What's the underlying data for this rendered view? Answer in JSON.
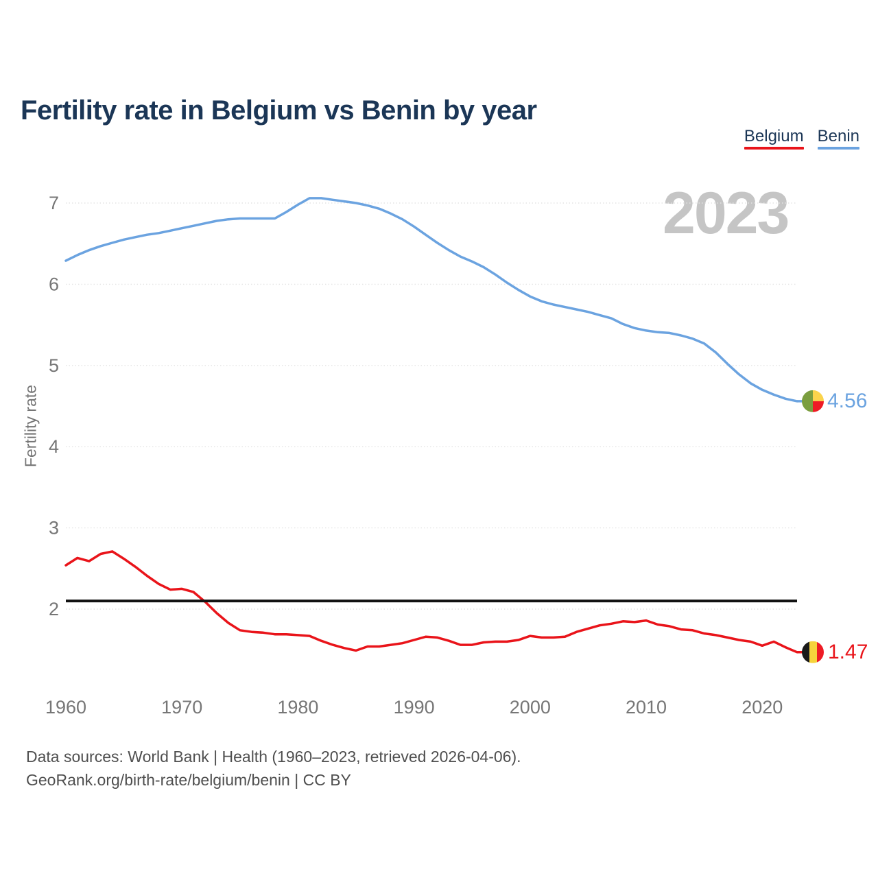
{
  "title": "Fertility rate in Belgium vs Benin by year",
  "watermark": "2023",
  "ylabel": "Fertility rate",
  "legend": [
    {
      "label": "Belgium",
      "color": "#e9141a"
    },
    {
      "label": "Benin",
      "color": "#6ba3e0"
    }
  ],
  "footer": {
    "line1": "Data sources: World Bank | Health (1960–2023, retrieved 2026-04-06).",
    "line2": "GeoRank.org/birth-rate/belgium/benin | CC BY"
  },
  "chart_data": {
    "type": "line",
    "title": "Fertility rate in Belgium vs Benin by year",
    "xlabel": "",
    "ylabel": "Fertility rate",
    "xlim": [
      1960,
      2023
    ],
    "ylim": [
      1.3,
      7.3
    ],
    "grid": "horizontal-dotted",
    "legend_position": "top-right",
    "yticks": [
      2,
      3,
      4,
      5,
      6,
      7
    ],
    "xticks": [
      1960,
      1970,
      1980,
      1990,
      2000,
      2010,
      2020
    ],
    "reference_line": {
      "value": 2.1,
      "color": "#111111",
      "label": ""
    },
    "x": [
      1960,
      1961,
      1962,
      1963,
      1964,
      1965,
      1966,
      1967,
      1968,
      1969,
      1970,
      1971,
      1972,
      1973,
      1974,
      1975,
      1976,
      1977,
      1978,
      1979,
      1980,
      1981,
      1982,
      1983,
      1984,
      1985,
      1986,
      1987,
      1988,
      1989,
      1990,
      1991,
      1992,
      1993,
      1994,
      1995,
      1996,
      1997,
      1998,
      1999,
      2000,
      2001,
      2002,
      2003,
      2004,
      2005,
      2006,
      2007,
      2008,
      2009,
      2010,
      2011,
      2012,
      2013,
      2014,
      2015,
      2016,
      2017,
      2018,
      2019,
      2020,
      2021,
      2022,
      2023
    ],
    "series": [
      {
        "name": "Belgium",
        "color": "#e9141a",
        "end_label": "1.47",
        "end_value": 1.47,
        "flag": {
          "type": "vertical-stripes",
          "colors": [
            "#1a1a1a",
            "#f6d33c",
            "#ee1c25"
          ]
        },
        "values": [
          2.54,
          2.63,
          2.59,
          2.68,
          2.71,
          2.62,
          2.52,
          2.41,
          2.31,
          2.24,
          2.25,
          2.21,
          2.09,
          1.95,
          1.83,
          1.74,
          1.72,
          1.71,
          1.69,
          1.69,
          1.68,
          1.67,
          1.61,
          1.56,
          1.52,
          1.49,
          1.54,
          1.54,
          1.56,
          1.58,
          1.62,
          1.66,
          1.65,
          1.61,
          1.56,
          1.56,
          1.59,
          1.6,
          1.6,
          1.62,
          1.67,
          1.65,
          1.65,
          1.66,
          1.72,
          1.76,
          1.8,
          1.82,
          1.85,
          1.84,
          1.86,
          1.81,
          1.79,
          1.75,
          1.74,
          1.7,
          1.68,
          1.65,
          1.62,
          1.6,
          1.55,
          1.6,
          1.53,
          1.47
        ]
      },
      {
        "name": "Benin",
        "color": "#6ba3e0",
        "end_label": "4.56",
        "end_value": 4.56,
        "flag": {
          "type": "benin",
          "colors": [
            "#7b9e3f",
            "#fbd44c",
            "#ee1c25"
          ]
        },
        "values": [
          6.29,
          6.36,
          6.42,
          6.47,
          6.51,
          6.55,
          6.58,
          6.61,
          6.63,
          6.66,
          6.69,
          6.72,
          6.75,
          6.78,
          6.8,
          6.81,
          6.81,
          6.81,
          6.81,
          6.89,
          6.98,
          7.06,
          7.06,
          7.04,
          7.02,
          7.0,
          6.97,
          6.93,
          6.87,
          6.8,
          6.71,
          6.61,
          6.51,
          6.42,
          6.34,
          6.28,
          6.21,
          6.12,
          6.02,
          5.93,
          5.85,
          5.79,
          5.75,
          5.72,
          5.69,
          5.66,
          5.62,
          5.58,
          5.51,
          5.46,
          5.43,
          5.41,
          5.4,
          5.37,
          5.33,
          5.27,
          5.16,
          5.02,
          4.89,
          4.78,
          4.7,
          4.64,
          4.59,
          4.56
        ]
      }
    ]
  },
  "colors": {
    "title": "#1b3656",
    "tick": "#767676",
    "grid": "#e4e4e4",
    "watermark": "#c5c5c5",
    "footer": "#4f4f4f"
  }
}
